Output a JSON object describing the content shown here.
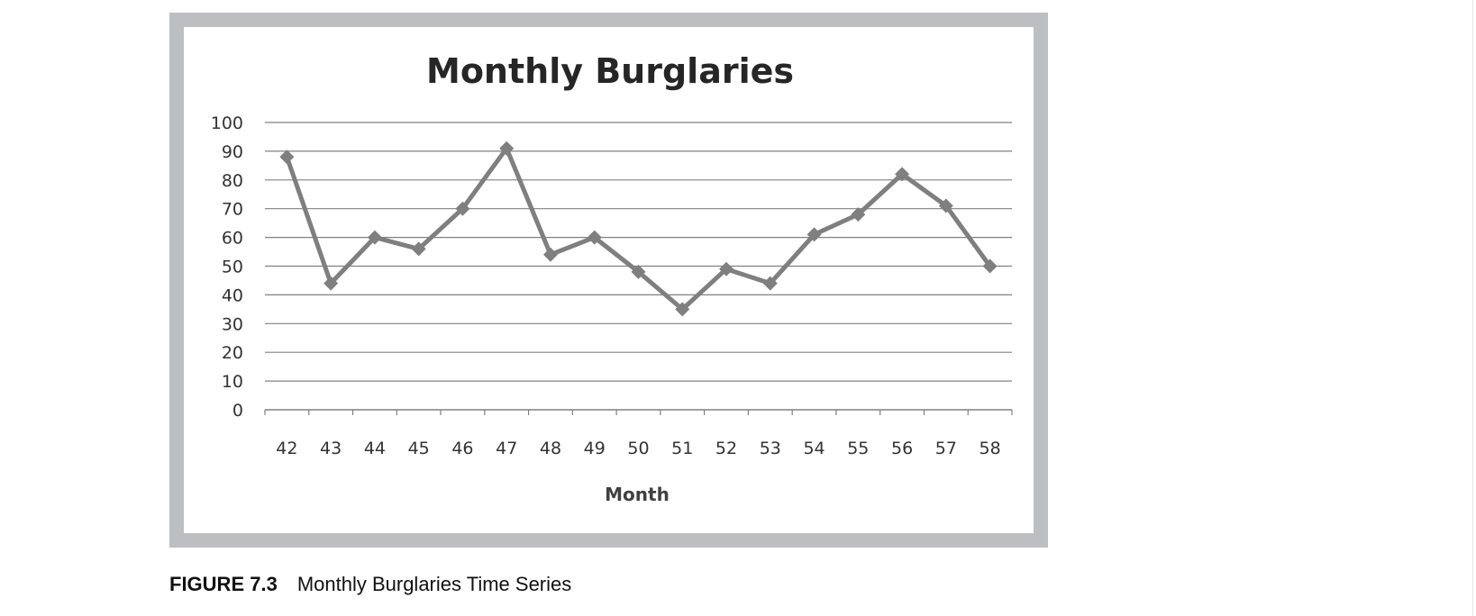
{
  "caption": {
    "figure_label": "FIGURE 7.3",
    "text": "Monthly Burglaries Time Series"
  },
  "colors": {
    "frame": "#bdbec2",
    "plot_background": "#ffffff",
    "series_line": "#7f7f7f",
    "gridline": "#808080",
    "text": "#333333"
  },
  "chart_data": {
    "type": "line",
    "title": "Monthly Burglaries",
    "xlabel": "Month",
    "ylabel": "",
    "x": [
      "42",
      "43",
      "44",
      "45",
      "46",
      "47",
      "48",
      "49",
      "50",
      "51",
      "52",
      "53",
      "54",
      "55",
      "56",
      "57",
      "58"
    ],
    "series": [
      {
        "values": [
          88,
          44,
          60,
          56,
          70,
          91,
          54,
          60,
          48,
          35,
          49,
          44,
          61,
          68,
          82,
          71,
          50
        ],
        "marker": "diamond"
      }
    ],
    "ylim": [
      0,
      100
    ],
    "yticks": [
      0,
      10,
      20,
      30,
      40,
      50,
      60,
      70,
      80,
      90,
      100
    ],
    "grid": "horizontal",
    "legend": "none"
  }
}
